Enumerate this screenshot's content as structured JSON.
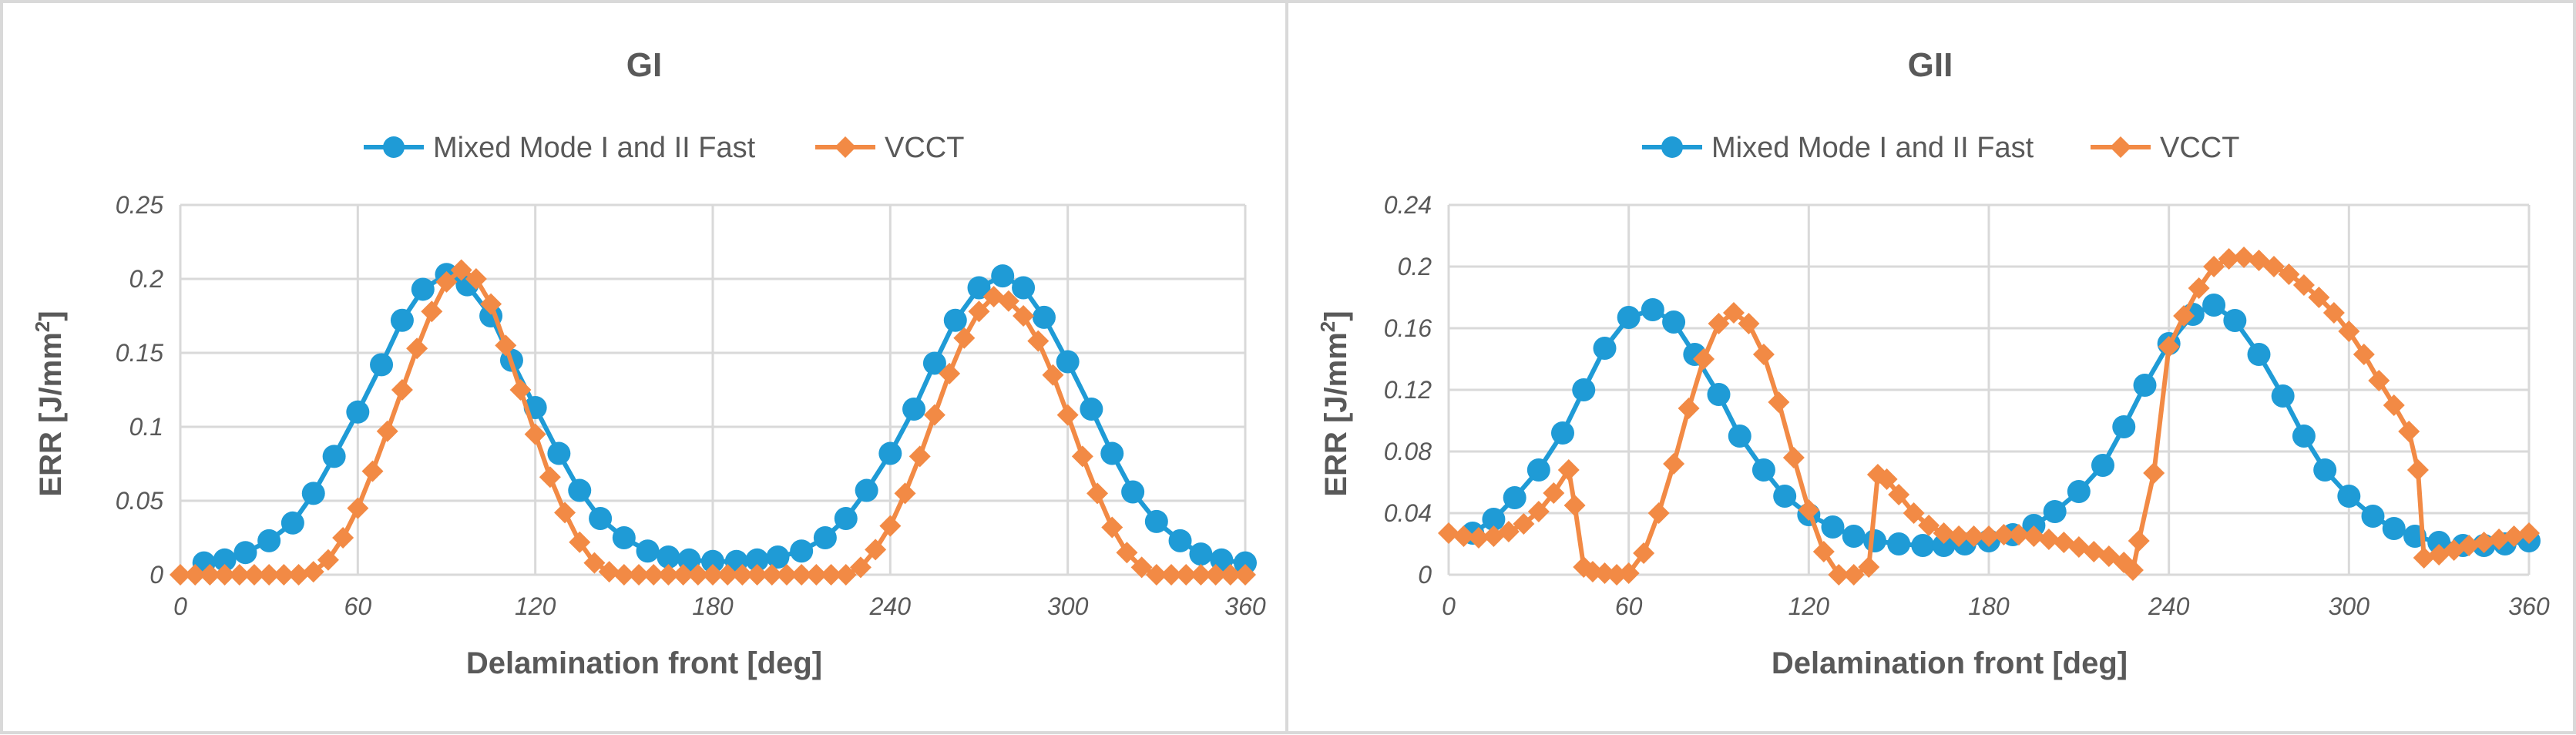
{
  "colors": {
    "mixed": "#1f9bd6",
    "vcct": "#f28a45",
    "grid": "#d9d9d9",
    "text": "#595959"
  },
  "chart_data": [
    {
      "type": "line",
      "title": "GI",
      "xlabel": "Delamination front [deg]",
      "ylabel": "ERR [J/mm²]",
      "ylabel_main": "ERR [J/mm",
      "ylabel_sup": "2",
      "ylabel_end": "]",
      "xlim": [
        0,
        360
      ],
      "ylim": [
        0,
        0.25
      ],
      "xticks": [
        0,
        60,
        120,
        180,
        240,
        300,
        360
      ],
      "xtick_labels": [
        "0",
        "60",
        "120",
        "180",
        "240",
        "300",
        "360"
      ],
      "yticks": [
        0,
        0.05,
        0.1,
        0.15,
        0.2,
        0.25
      ],
      "ytick_labels": [
        "0",
        "0.05",
        "0.1",
        "0.15",
        "0.2",
        "0.25"
      ],
      "series": [
        {
          "name": "Mixed Mode I and II Fast",
          "marker": "circle",
          "x": [
            8,
            15,
            22,
            30,
            38,
            45,
            52,
            60,
            68,
            75,
            82,
            90,
            97,
            105,
            112,
            120,
            128,
            135,
            142,
            150,
            158,
            165,
            172,
            180,
            188,
            195,
            202,
            210,
            218,
            225,
            232,
            240,
            248,
            255,
            262,
            270,
            278,
            285,
            292,
            300,
            308,
            315,
            322,
            330,
            338,
            345,
            352,
            360
          ],
          "y": [
            0.008,
            0.01,
            0.015,
            0.023,
            0.035,
            0.055,
            0.08,
            0.11,
            0.142,
            0.172,
            0.193,
            0.203,
            0.196,
            0.175,
            0.145,
            0.113,
            0.082,
            0.057,
            0.038,
            0.025,
            0.016,
            0.012,
            0.01,
            0.009,
            0.009,
            0.01,
            0.012,
            0.016,
            0.025,
            0.038,
            0.057,
            0.082,
            0.112,
            0.143,
            0.172,
            0.194,
            0.202,
            0.194,
            0.174,
            0.144,
            0.112,
            0.082,
            0.056,
            0.036,
            0.023,
            0.014,
            0.01,
            0.008
          ]
        },
        {
          "name": "VCCT",
          "marker": "diamond",
          "x": [
            0,
            5,
            10,
            15,
            20,
            25,
            30,
            35,
            40,
            45,
            50,
            55,
            60,
            65,
            70,
            75,
            80,
            85,
            90,
            95,
            100,
            105,
            110,
            115,
            120,
            125,
            130,
            135,
            140,
            145,
            150,
            155,
            160,
            165,
            170,
            175,
            180,
            185,
            190,
            195,
            200,
            205,
            210,
            215,
            220,
            225,
            230,
            235,
            240,
            245,
            250,
            255,
            260,
            265,
            270,
            275,
            280,
            285,
            290,
            295,
            300,
            305,
            310,
            315,
            320,
            325,
            330,
            335,
            340,
            345,
            350,
            355,
            360
          ],
          "y": [
            0,
            0,
            0,
            0,
            0,
            0,
            0,
            0,
            0,
            0.002,
            0.01,
            0.025,
            0.045,
            0.07,
            0.097,
            0.125,
            0.153,
            0.178,
            0.198,
            0.206,
            0.2,
            0.183,
            0.155,
            0.125,
            0.095,
            0.066,
            0.042,
            0.022,
            0.008,
            0.002,
            0,
            0,
            0,
            0,
            0,
            0,
            0,
            0,
            0,
            0,
            0,
            0,
            0,
            0,
            0,
            0,
            0.005,
            0.017,
            0.033,
            0.055,
            0.08,
            0.108,
            0.136,
            0.16,
            0.178,
            0.188,
            0.185,
            0.175,
            0.158,
            0.135,
            0.108,
            0.08,
            0.055,
            0.032,
            0.015,
            0.005,
            0,
            0,
            0,
            0,
            0,
            0,
            0
          ]
        }
      ]
    },
    {
      "type": "line",
      "title": "GII",
      "xlabel": "Delamination front [deg]",
      "ylabel": "ERR [J/mm²]",
      "ylabel_main": "ERR [J/mm",
      "ylabel_sup": "2",
      "ylabel_end": "]",
      "xlim": [
        0,
        360
      ],
      "ylim": [
        0,
        0.24
      ],
      "xticks": [
        0,
        60,
        120,
        180,
        240,
        300,
        360
      ],
      "xtick_labels": [
        "0",
        "60",
        "120",
        "180",
        "240",
        "300",
        "360"
      ],
      "yticks": [
        0,
        0.04,
        0.08,
        0.12,
        0.16,
        0.2,
        0.24
      ],
      "ytick_labels": [
        "0",
        "0.04",
        "0.08",
        "0.12",
        "0.16",
        "0.2",
        "0.24"
      ],
      "series": [
        {
          "name": "Mixed Mode I and II Fast",
          "marker": "circle",
          "x": [
            8,
            15,
            22,
            30,
            38,
            45,
            52,
            60,
            68,
            75,
            82,
            90,
            97,
            105,
            112,
            120,
            128,
            135,
            142,
            150,
            158,
            165,
            172,
            180,
            188,
            195,
            202,
            210,
            218,
            225,
            232,
            240,
            248,
            255,
            262,
            270,
            278,
            285,
            292,
            300,
            308,
            315,
            322,
            330,
            338,
            345,
            352,
            360
          ],
          "y": [
            0.027,
            0.036,
            0.05,
            0.068,
            0.092,
            0.12,
            0.147,
            0.167,
            0.172,
            0.164,
            0.143,
            0.117,
            0.09,
            0.068,
            0.051,
            0.039,
            0.031,
            0.025,
            0.022,
            0.02,
            0.019,
            0.019,
            0.02,
            0.022,
            0.026,
            0.032,
            0.041,
            0.054,
            0.071,
            0.096,
            0.123,
            0.15,
            0.169,
            0.175,
            0.165,
            0.143,
            0.116,
            0.09,
            0.068,
            0.051,
            0.038,
            0.03,
            0.025,
            0.021,
            0.019,
            0.019,
            0.02,
            0.022
          ]
        },
        {
          "name": "VCCT",
          "marker": "diamond",
          "x": [
            0,
            5,
            10,
            15,
            20,
            25,
            30,
            35,
            40,
            42,
            45,
            48,
            52,
            56,
            60,
            65,
            70,
            75,
            80,
            85,
            90,
            95,
            100,
            105,
            110,
            115,
            120,
            125,
            130,
            135,
            140,
            143,
            146,
            150,
            155,
            160,
            165,
            170,
            175,
            180,
            185,
            190,
            195,
            200,
            205,
            210,
            215,
            220,
            225,
            228,
            230,
            235,
            240,
            245,
            250,
            255,
            260,
            265,
            270,
            275,
            280,
            285,
            290,
            295,
            300,
            305,
            310,
            315,
            320,
            323,
            325,
            330,
            335,
            340,
            345,
            350,
            355,
            360
          ],
          "y": [
            0.027,
            0.025,
            0.024,
            0.025,
            0.028,
            0.033,
            0.041,
            0.053,
            0.068,
            0.045,
            0.005,
            0.002,
            0.001,
            0,
            0.001,
            0.014,
            0.04,
            0.072,
            0.108,
            0.14,
            0.163,
            0.17,
            0.163,
            0.143,
            0.112,
            0.076,
            0.042,
            0.015,
            0,
            0,
            0.005,
            0.065,
            0.062,
            0.052,
            0.04,
            0.032,
            0.027,
            0.025,
            0.025,
            0.025,
            0.026,
            0.026,
            0.025,
            0.023,
            0.021,
            0.018,
            0.015,
            0.012,
            0.008,
            0.003,
            0.022,
            0.066,
            0.148,
            0.168,
            0.186,
            0.2,
            0.205,
            0.206,
            0.204,
            0.2,
            0.195,
            0.188,
            0.18,
            0.17,
            0.158,
            0.143,
            0.126,
            0.11,
            0.093,
            0.068,
            0.011,
            0.013,
            0.016,
            0.019,
            0.021,
            0.023,
            0.025,
            0.027
          ]
        }
      ]
    }
  ]
}
